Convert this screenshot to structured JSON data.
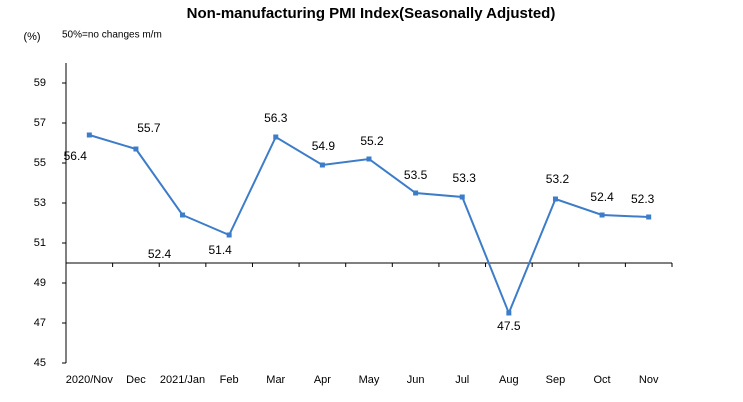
{
  "chart_data": {
    "type": "line",
    "title": "Non-manufacturing PMI Index(Seasonally Adjusted)",
    "y_label": "(%)",
    "annotation": "50%=no changes  m/m",
    "categories": [
      "2020/Nov",
      "Dec",
      "2021/Jan",
      "Feb",
      "Mar",
      "Apr",
      "May",
      "Jun",
      "Jul",
      "Aug",
      "Sep",
      "Oct",
      "Nov"
    ],
    "series": [
      {
        "name": "Non-manufacturing PMI",
        "color": "#3d7cc9",
        "values": [
          56.4,
          55.7,
          52.4,
          51.4,
          56.3,
          54.9,
          55.2,
          53.5,
          53.3,
          47.5,
          53.2,
          52.4,
          52.3
        ]
      }
    ],
    "baseline": 50,
    "ylim": [
      45,
      60
    ],
    "yticks": [
      45,
      47,
      49,
      51,
      53,
      55,
      57,
      59
    ]
  }
}
